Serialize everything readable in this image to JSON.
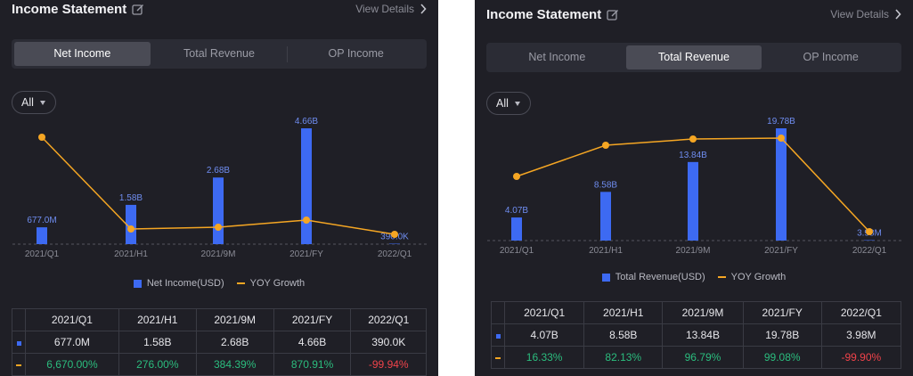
{
  "panels": [
    {
      "title": "Income Statement",
      "view_details": "View Details",
      "tabs": [
        "Net Income",
        "Total Revenue",
        "OP Income"
      ],
      "active_tab": 0,
      "filter": "All",
      "legend": {
        "bar": "Net Income(USD)",
        "line": "YOY Growth"
      },
      "table": {
        "headers": [
          "2021/Q1",
          "2021/H1",
          "2021/9M",
          "2021/FY",
          "2022/Q1"
        ],
        "values": [
          "677.0M",
          "1.58B",
          "2.68B",
          "4.66B",
          "390.0K"
        ],
        "growth": [
          "6,670.00%",
          "276.00%",
          "384.39%",
          "870.91%",
          "-99.94%"
        ]
      },
      "chart_data": {
        "type": "bar",
        "categories": [
          "2021/Q1",
          "2021/H1",
          "2021/9M",
          "2021/FY",
          "2022/Q1"
        ],
        "series": [
          {
            "name": "Net Income(USD)",
            "values": [
              0.677,
              1.58,
              2.68,
              4.66,
              0.00039
            ],
            "labels": [
              "677.0M",
              "1.58B",
              "2.68B",
              "4.66B",
              "390.0K"
            ],
            "unit": "B"
          },
          {
            "name": "YOY Growth",
            "type": "line",
            "values": [
              6670.0,
              276.0,
              384.39,
              870.91,
              -99.94
            ],
            "unit": "%"
          }
        ]
      }
    },
    {
      "title": "Income Statement",
      "view_details": "View Details",
      "tabs": [
        "Net Income",
        "Total Revenue",
        "OP Income"
      ],
      "active_tab": 1,
      "filter": "All",
      "legend": {
        "bar": "Total Revenue(USD)",
        "line": "YOY Growth"
      },
      "table": {
        "headers": [
          "2021/Q1",
          "2021/H1",
          "2021/9M",
          "2021/FY",
          "2022/Q1"
        ],
        "values": [
          "4.07B",
          "8.58B",
          "13.84B",
          "19.78B",
          "3.98M"
        ],
        "growth": [
          "16.33%",
          "82.13%",
          "96.79%",
          "99.08%",
          "-99.90%"
        ]
      },
      "chart_data": {
        "type": "bar",
        "categories": [
          "2021/Q1",
          "2021/H1",
          "2021/9M",
          "2021/FY",
          "2022/Q1"
        ],
        "series": [
          {
            "name": "Total Revenue(USD)",
            "values": [
              4.07,
              8.58,
              13.84,
              19.78,
              0.00398
            ],
            "labels": [
              "4.07B",
              "8.58B",
              "13.84B",
              "19.78B",
              "3.98M"
            ],
            "unit": "B"
          },
          {
            "name": "YOY Growth",
            "type": "line",
            "values": [
              16.33,
              82.13,
              96.79,
              99.08,
              -99.9
            ],
            "unit": "%"
          }
        ]
      }
    }
  ],
  "colors": {
    "bar": "#3d6af2",
    "line": "#f5a623",
    "positive": "#2bbd7e",
    "negative": "#f0434a"
  }
}
